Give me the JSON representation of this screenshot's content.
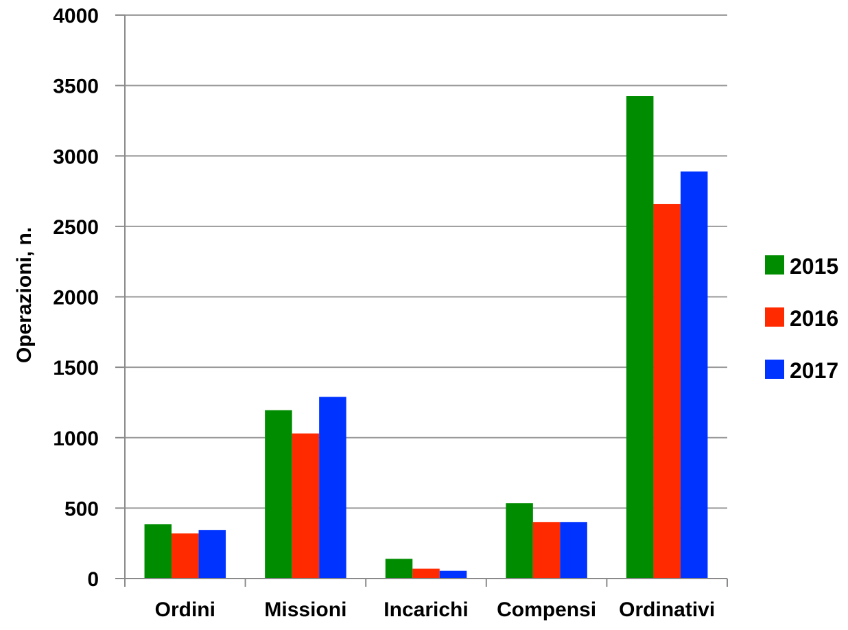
{
  "chart_data": {
    "type": "bar",
    "title": "",
    "xlabel": "",
    "ylabel": "Operazioni, n.",
    "ylim": [
      0,
      4000
    ],
    "yticks": [
      0,
      500,
      1000,
      1500,
      2000,
      2500,
      3000,
      3500,
      4000
    ],
    "grid": true,
    "legend_position": "right",
    "categories": [
      "Ordini",
      "Missioni",
      "Incarichi",
      "Compensi",
      "Ordinativi"
    ],
    "series": [
      {
        "name": "2015",
        "color": "#008c00",
        "values": [
          385,
          1195,
          140,
          535,
          3425
        ]
      },
      {
        "name": "2016",
        "color": "#ff2a00",
        "values": [
          320,
          1030,
          70,
          400,
          2660
        ]
      },
      {
        "name": "2017",
        "color": "#0033ff",
        "values": [
          345,
          1290,
          55,
          400,
          2890
        ]
      }
    ]
  }
}
